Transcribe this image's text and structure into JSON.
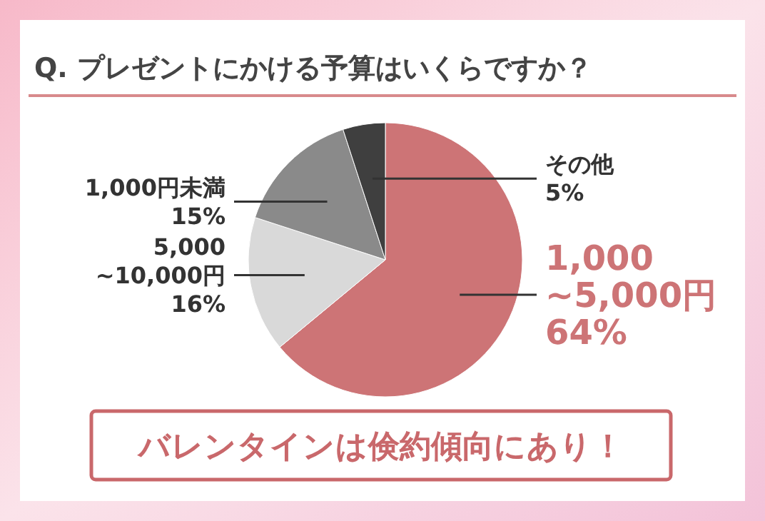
{
  "chart_data": {
    "type": "pie",
    "title": "Q. プレゼントにかける予算はいくらですか？",
    "categories": [
      "1,000\n~5,000円",
      "5,000\n~10,000円",
      "1,000円未満",
      "その他"
    ],
    "values": [
      64,
      16,
      15,
      5
    ],
    "value_labels": [
      "64%",
      "16%",
      "15%",
      "5%"
    ],
    "colors": [
      "#cd7476",
      "#d9d9d9",
      "#8a8a8a",
      "#3f3f3f"
    ],
    "annotations": [
      "バレンタインは倹約傾向にあり！"
    ]
  }
}
